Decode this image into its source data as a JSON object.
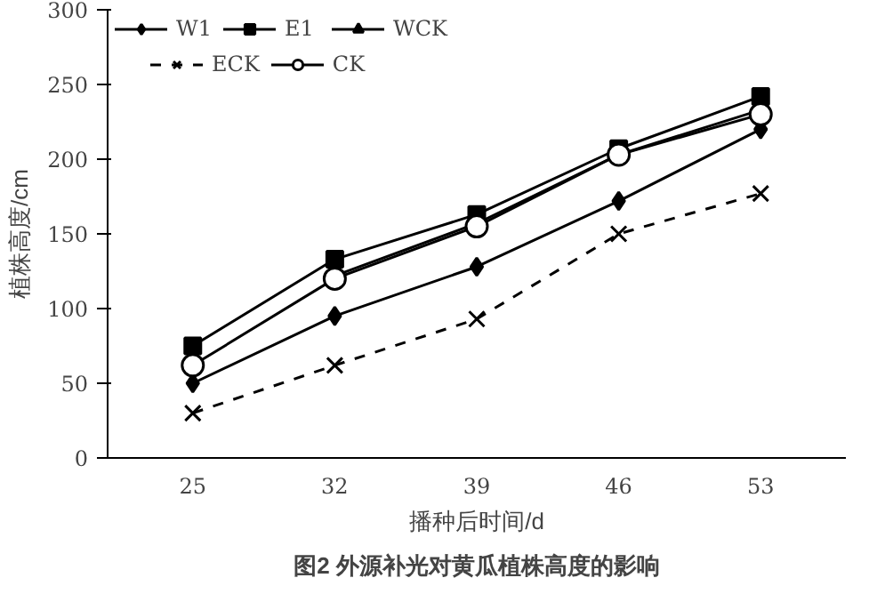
{
  "chart_data": {
    "type": "line",
    "title": "图2 外源补光对黄瓜植株高度的影响",
    "xlabel": "播种后时间/d",
    "ylabel": "植株高度/cm",
    "categories": [
      "25",
      "32",
      "39",
      "46",
      "53"
    ],
    "ylim": [
      0,
      300
    ],
    "yticks": [
      0,
      50,
      100,
      150,
      200,
      250,
      300
    ],
    "grid": false,
    "legend": "top",
    "series": [
      {
        "name": "W1",
        "color": "#000000",
        "marker": "diamond",
        "values": [
          50,
          95,
          128,
          172,
          220
        ]
      },
      {
        "name": "E1",
        "color": "#000000",
        "marker": "square",
        "values": [
          75,
          133,
          163,
          207,
          242
        ]
      },
      {
        "name": "WCK",
        "color": "#000000",
        "marker": "triangle",
        "values": [
          null,
          122,
          157,
          203,
          233
        ]
      },
      {
        "name": "ECK",
        "color": "#000000",
        "marker": "cross",
        "line_style": "dashed",
        "values": [
          30,
          62,
          93,
          150,
          177
        ]
      },
      {
        "name": "CK",
        "color": "#000000",
        "marker": "circle",
        "values": [
          62,
          120,
          155,
          203,
          230
        ]
      }
    ]
  }
}
